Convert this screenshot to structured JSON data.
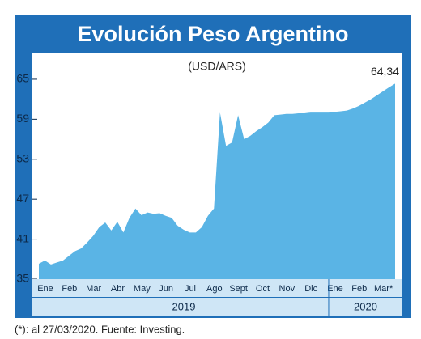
{
  "chart_data": {
    "type": "area",
    "title": "Evolución Peso Argentino",
    "subtitle": "(USD/ARS)",
    "categories": [
      "Ene",
      null,
      null,
      null,
      "Feb",
      null,
      null,
      null,
      "Mar",
      null,
      null,
      null,
      "Abr",
      null,
      null,
      null,
      "May",
      null,
      null,
      null,
      "Jun",
      null,
      null,
      null,
      "Jul",
      null,
      null,
      null,
      "Ago",
      null,
      null,
      null,
      "Sept",
      null,
      null,
      null,
      "Oct",
      null,
      null,
      null,
      "Nov",
      null,
      null,
      null,
      "Dic",
      null,
      null,
      null,
      "Ene",
      null,
      null,
      null,
      "Feb",
      null,
      null,
      null,
      "Mar*",
      null,
      null,
      null
    ],
    "values": [
      37.3,
      37.8,
      37.2,
      37.5,
      37.8,
      38.5,
      39.2,
      39.6,
      40.5,
      41.5,
      42.8,
      43.5,
      42.3,
      43.6,
      42,
      44.2,
      45.6,
      44.6,
      45,
      44.8,
      44.9,
      44.5,
      44.2,
      43,
      42.4,
      42,
      42,
      42.8,
      44.5,
      45.6,
      60,
      55,
      55.5,
      59.6,
      56,
      56.5,
      57.2,
      57.8,
      58.5,
      59.6,
      59.7,
      59.8,
      59.8,
      59.9,
      59.9,
      60,
      60,
      60,
      60,
      60.1,
      60.2,
      60.3,
      60.6,
      61,
      61.5,
      62,
      62.6,
      63.2,
      63.8,
      64.34
    ],
    "value_labels": [
      null,
      null,
      null,
      null,
      null,
      null,
      null,
      null,
      null,
      null,
      null,
      null,
      null,
      null,
      null,
      null,
      null,
      null,
      null,
      null,
      null,
      null,
      null,
      null,
      null,
      null,
      null,
      null,
      null,
      null,
      null,
      null,
      null,
      null,
      null,
      null,
      null,
      null,
      null,
      null,
      null,
      null,
      null,
      null,
      null,
      null,
      null,
      null,
      null,
      null,
      null,
      null,
      null,
      null,
      null,
      null,
      null,
      null,
      null,
      "64,34"
    ],
    "years": [
      "2019",
      "2020"
    ],
    "color": "#5ab4e5",
    "frame_color": "#1f6fb8",
    "ylim": [
      35,
      69
    ],
    "yticks": [
      35,
      41,
      47,
      53,
      59,
      65
    ],
    "footnote": "(*): al 27/03/2020. Fuente: Investing."
  }
}
